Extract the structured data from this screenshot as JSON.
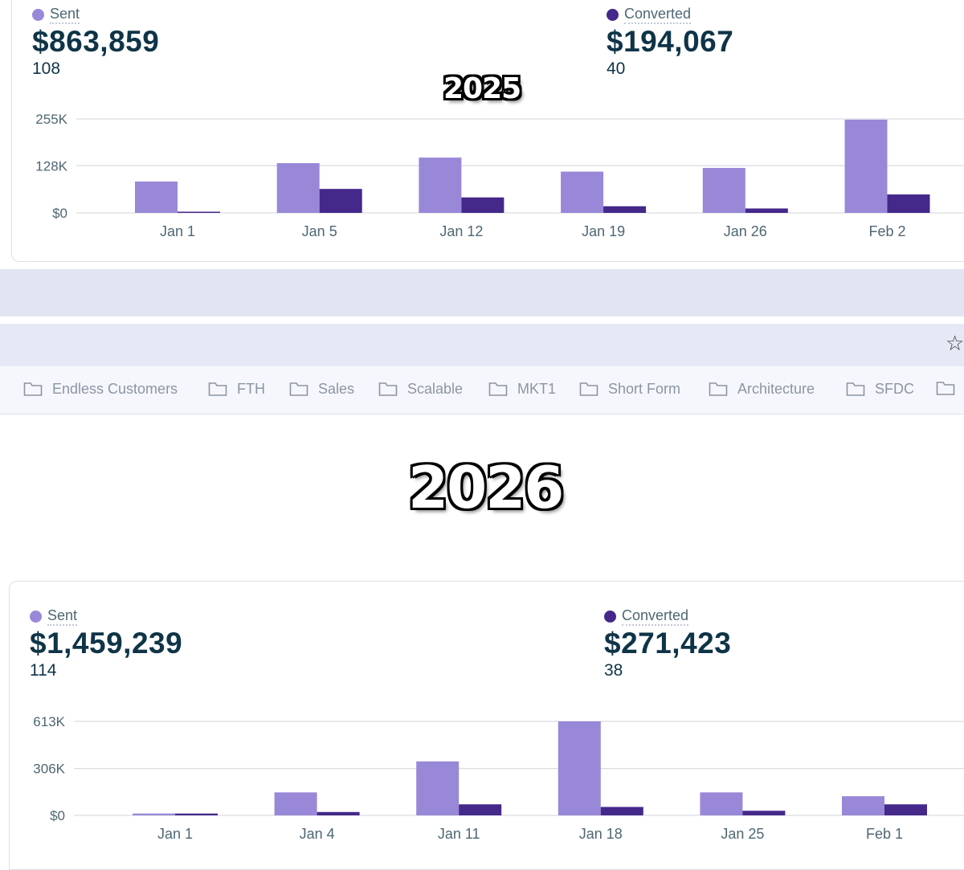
{
  "colors": {
    "sent": "#9988d8",
    "converted": "#44288a",
    "grid": "#d9dce2",
    "axis_text": "#4e6772"
  },
  "panel_2025": {
    "year_label": "2025",
    "sent_label": "Sent",
    "sent_amount": "$863,859",
    "sent_count": "108",
    "converted_label": "Converted",
    "converted_amount": "$194,067",
    "converted_count": "40"
  },
  "panel_2026": {
    "year_label": "2026",
    "sent_label": "Sent",
    "sent_amount": "$1,459,239",
    "sent_count": "114",
    "converted_label": "Converted",
    "converted_amount": "$271,423",
    "converted_count": "38"
  },
  "toolbar": {
    "star_icon": "star-icon"
  },
  "bookmarks": {
    "folders": [
      "Endless Customers",
      "FTH",
      "Sales",
      "Scalable",
      "MKT1",
      "Short Form",
      "Architecture",
      "SFDC",
      ""
    ]
  },
  "chart_data": [
    {
      "type": "bar",
      "title": "2025",
      "categories": [
        "Jan 1",
        "Jan 5",
        "Jan 12",
        "Jan 19",
        "Jan 26",
        "Feb 2"
      ],
      "series": [
        {
          "name": "Sent",
          "values": [
            85000,
            135000,
            150000,
            112000,
            122000,
            253000
          ]
        },
        {
          "name": "Converted",
          "values": [
            2000,
            65000,
            42000,
            18000,
            12000,
            50000
          ]
        }
      ],
      "yticks": [
        "$0",
        "128K",
        "255K"
      ],
      "ytick_values": [
        0,
        128000,
        255000
      ],
      "ylim": [
        0,
        255000
      ]
    },
    {
      "type": "bar",
      "title": "2026",
      "categories": [
        "Jan 1",
        "Jan 4",
        "Jan 11",
        "Jan 18",
        "Jan 25",
        "Feb 1"
      ],
      "series": [
        {
          "name": "Sent",
          "values": [
            12000,
            150000,
            352000,
            613000,
            150000,
            125000
          ]
        },
        {
          "name": "Converted",
          "values": [
            12000,
            22000,
            72000,
            55000,
            30000,
            72000
          ]
        }
      ],
      "yticks": [
        "$0",
        "306K",
        "613K"
      ],
      "ytick_values": [
        0,
        306000,
        613000
      ],
      "ylim": [
        0,
        613000
      ]
    }
  ]
}
